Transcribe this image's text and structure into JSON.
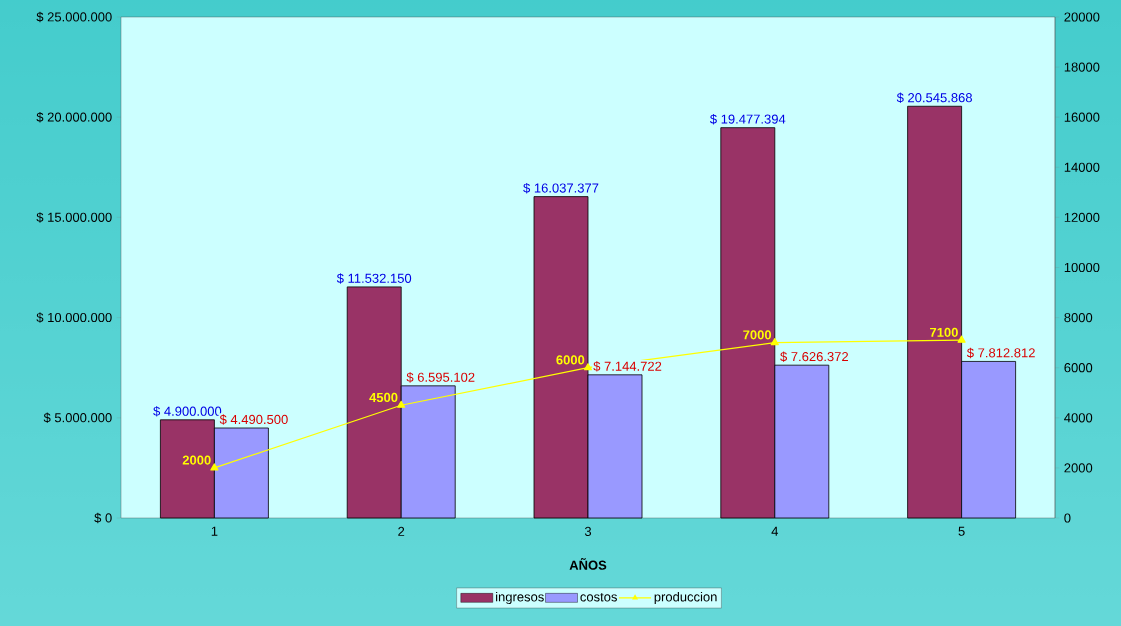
{
  "chart_data": {
    "type": "bar",
    "xlabel": "AÑOS",
    "categories": [
      "1",
      "2",
      "3",
      "4",
      "5"
    ],
    "series": [
      {
        "name": "ingresos",
        "color": "#993366",
        "values": [
          4900000,
          11532150,
          16037377,
          19477394,
          20545868
        ],
        "value_labels": [
          "$ 4.900.000",
          "$ 11.532.150",
          "$ 16.037.377",
          "$ 19.477.394",
          "$ 20.545.868"
        ]
      },
      {
        "name": "costos",
        "color": "#9999ff",
        "values": [
          4490500,
          6595102,
          7144722,
          7626372,
          7812812
        ],
        "value_labels": [
          "$ 4.490.500",
          "$ 6.595.102",
          "$ 7.144.722",
          "$ 7.626.372",
          "$ 7.812.812"
        ]
      },
      {
        "name": "produccion",
        "type": "line",
        "axis": "y2",
        "color": "#ffff00",
        "marker": "triangle",
        "values": [
          2000,
          4500,
          6000,
          7000,
          7100
        ],
        "value_labels": [
          "2000",
          "4500",
          "6000",
          "7000",
          "7100"
        ]
      }
    ],
    "ylim": [
      0,
      25000000
    ],
    "yticks": [
      {
        "value": 0,
        "label": "$ 0"
      },
      {
        "value": 5000000,
        "label": "$ 5.000.000"
      },
      {
        "value": 10000000,
        "label": "$ 10.000.000"
      },
      {
        "value": 15000000,
        "label": "$ 15.000.000"
      },
      {
        "value": 20000000,
        "label": "$ 20.000.000"
      },
      {
        "value": 25000000,
        "label": "$ 25.000.000"
      }
    ],
    "y2lim": [
      0,
      20000
    ],
    "y2ticks": [
      0,
      2000,
      4000,
      6000,
      8000,
      10000,
      12000,
      14000,
      16000,
      18000,
      20000
    ],
    "legend": "bottom"
  }
}
